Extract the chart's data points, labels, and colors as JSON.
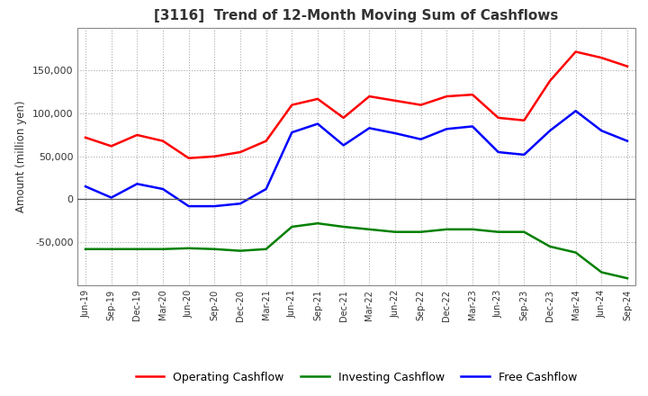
{
  "title": "[3116]  Trend of 12-Month Moving Sum of Cashflows",
  "ylabel": "Amount (million yen)",
  "ylim": [
    -100000,
    200000
  ],
  "yticks": [
    -50000,
    0,
    50000,
    100000,
    150000
  ],
  "background_color": "#ffffff",
  "grid_color": "#aaaaaa",
  "x_labels": [
    "Jun-19",
    "Sep-19",
    "Dec-19",
    "Mar-20",
    "Jun-20",
    "Sep-20",
    "Dec-20",
    "Mar-21",
    "Jun-21",
    "Sep-21",
    "Dec-21",
    "Mar-22",
    "Jun-22",
    "Sep-22",
    "Dec-22",
    "Mar-23",
    "Jun-23",
    "Sep-23",
    "Dec-23",
    "Mar-24",
    "Jun-24",
    "Sep-24"
  ],
  "operating_cashflow": [
    72000,
    62000,
    75000,
    68000,
    48000,
    50000,
    55000,
    68000,
    110000,
    117000,
    95000,
    120000,
    115000,
    110000,
    120000,
    122000,
    95000,
    92000,
    138000,
    172000,
    165000,
    155000
  ],
  "investing_cashflow": [
    -58000,
    -58000,
    -58000,
    -58000,
    -57000,
    -58000,
    -60000,
    -58000,
    -32000,
    -28000,
    -32000,
    -35000,
    -38000,
    -38000,
    -35000,
    -35000,
    -38000,
    -38000,
    -55000,
    -62000,
    -85000,
    -92000
  ],
  "free_cashflow": [
    15000,
    2000,
    18000,
    12000,
    -8000,
    -8000,
    -5000,
    12000,
    78000,
    88000,
    63000,
    83000,
    77000,
    70000,
    82000,
    85000,
    55000,
    52000,
    80000,
    103000,
    80000,
    68000
  ],
  "op_color": "#ff0000",
  "inv_color": "#008000",
  "free_color": "#0000ff",
  "legend_labels": [
    "Operating Cashflow",
    "Investing Cashflow",
    "Free Cashflow"
  ]
}
